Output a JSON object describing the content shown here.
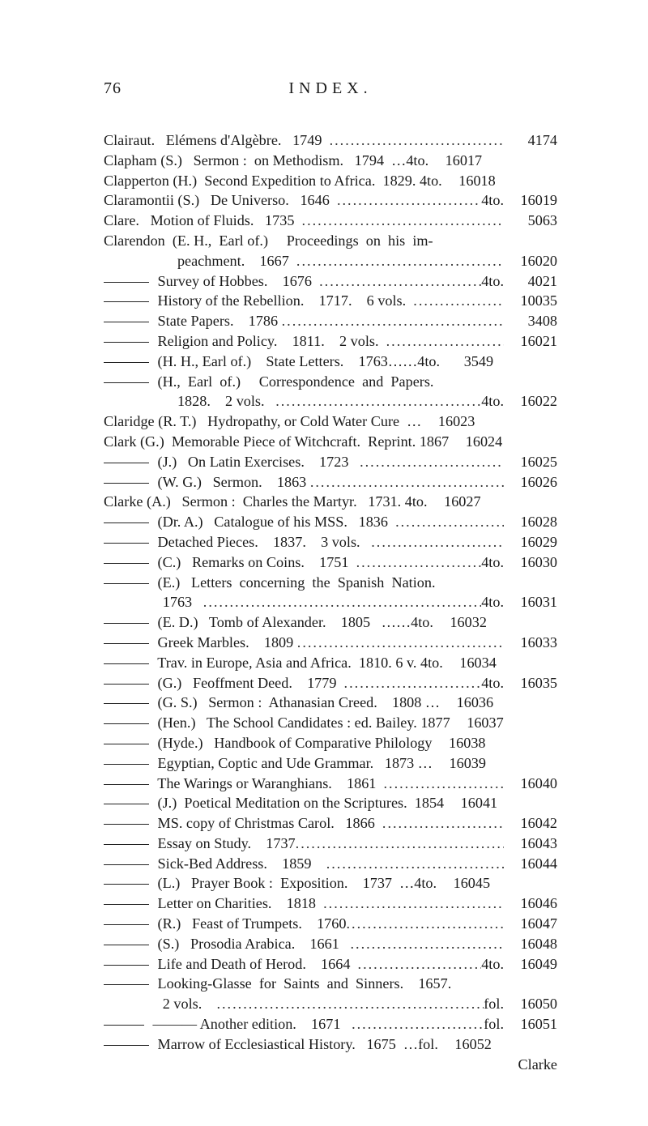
{
  "page_number": "76",
  "page_title": "INDEX.",
  "footer_word": "Clarke",
  "entries": [
    {
      "lead": "",
      "text": "Clairaut.   Elémens d'Algèbre.   1749  ",
      "num": "4174"
    },
    {
      "lead": "",
      "text": "Clapham (S.)   Sermon :  on Methodism.   1794  …4to.",
      "num": "16017",
      "nodots": true
    },
    {
      "lead": "",
      "text": "Clapperton (H.)  Second Expedition to Africa.  1829. 4to.",
      "num": "16018",
      "nodots": true
    },
    {
      "lead": "",
      "text": "Claramontii (S.)   De Universo.   1646  ",
      "suffix": "4to.",
      "num": "16019"
    },
    {
      "lead": "",
      "text": "Clare.   Motion of Fluids.   1735  ",
      "num": "5063"
    },
    {
      "lead": "",
      "text": "Clarendon  (E. H.,  Earl of.)     Proceedings  on  his  im-",
      "nonum": true
    },
    {
      "lead": "                    ",
      "text": "peachment.    1667  ",
      "num": "16020"
    },
    {
      "dash": true,
      "text": " Survey of Hobbes.    1676  ",
      "suffix": "4to.",
      "num": "4021"
    },
    {
      "dash": true,
      "text": " History of the Rebellion.    1717.    6 vols.  ",
      "num": "10035"
    },
    {
      "dash": true,
      "text": " State Papers.    1786 ",
      "num": "3408"
    },
    {
      "dash": true,
      "text": " Religion and Policy.    1811.    2 vols.  ",
      "num": "16021"
    },
    {
      "dash": true,
      "text": " (H. H., Earl of.)    State Letters.    1763……4to.",
      "num": "3549",
      "nodots": true
    },
    {
      "dash": true,
      "text": " (H.,  Earl  of.)     Correspondence  and  Papers.",
      "nonum": true
    },
    {
      "lead": "                    ",
      "text": "1828.    2 vols.   ",
      "suffix": "4to.",
      "num": "16022"
    },
    {
      "lead": "",
      "text": "Claridge (R. T.)   Hydropathy, or Cold Water Cure  …",
      "num": "16023",
      "nodots": true
    },
    {
      "lead": "",
      "text": "Clark (G.)  Memorable Piece of Witchcraft.  Reprint. 1867",
      "num": "16024",
      "nodots": true
    },
    {
      "dash": true,
      "text": " (J.)   On Latin Exercises.    1723   ",
      "num": "16025"
    },
    {
      "dash": true,
      "text": " (W. G.)   Sermon.    1863 ",
      "num": "16026"
    },
    {
      "lead": "",
      "text": "Clarke (A.)   Sermon :  Charles the Martyr.   1731. 4to.",
      "num": "16027",
      "nodots": true
    },
    {
      "dash": true,
      "text": " (Dr. A.)   Catalogue of his MSS.   1836  ",
      "num": "16028"
    },
    {
      "dash": true,
      "text": " Detached Pieces.    1837.    3 vols.   ",
      "num": "16029"
    },
    {
      "dash": true,
      "text": " (C.)   Remarks on Coins.    1751  ",
      "suffix": "4to.",
      "num": "16030"
    },
    {
      "dash": true,
      "text": " (E.)   Letters  concerning  the  Spanish  Nation.",
      "nonum": true
    },
    {
      "lead": "                ",
      "text": "1763   ",
      "suffix": "4to.",
      "num": "16031"
    },
    {
      "dash": true,
      "text": " (E. D.)   Tomb of Alexander.    1805   ……4to.",
      "num": "16032",
      "nodots": true
    },
    {
      "dash": true,
      "text": " Greek Marbles.    1809 ",
      "num": "16033"
    },
    {
      "dash": true,
      "text": " Trav. in Europe, Asia and Africa.  1810. 6 v. 4to.",
      "num": "16034",
      "nodots": true
    },
    {
      "dash": true,
      "text": " (G.)   Feoffment Deed.    1779  ",
      "suffix": "4to.",
      "num": "16035"
    },
    {
      "dash": true,
      "text": " (G. S.)   Sermon :  Athanasian Creed.    1808 …",
      "num": "16036",
      "nodots": true
    },
    {
      "dash": true,
      "text": " (Hen.)   The School Candidates : ed. Bailey. 1877",
      "num": "16037",
      "nodots": true
    },
    {
      "dash": true,
      "text": " (Hyde.)   Handbook of Comparative Philology",
      "num": "16038",
      "nodots": true
    },
    {
      "dash": true,
      "text": " Egyptian, Coptic and Ude Grammar.   1873 …",
      "num": "16039",
      "nodots": true
    },
    {
      "dash": true,
      "text": " The Warings or Waranghians.    1861  ",
      "num": "16040"
    },
    {
      "dash": true,
      "text": " (J.)  Poetical Meditation on the Scriptures.  1854",
      "num": "16041",
      "nodots": true
    },
    {
      "dash": true,
      "text": " MS. copy of Christmas Carol.   1866  ",
      "num": "16042"
    },
    {
      "dash": true,
      "text": " Essay on Study.    1737",
      "num": "16043"
    },
    {
      "dash": true,
      "text": " Sick-Bed Address.    1859    ",
      "num": "16044"
    },
    {
      "dash": true,
      "text": " (L.)   Prayer Book :  Exposition.    1737  …4to.",
      "num": "16045",
      "nodots": true
    },
    {
      "dash": true,
      "text": " Letter on Charities.    1818  ",
      "num": "16046"
    },
    {
      "dash": true,
      "text": " (R.)   Feast of Trumpets.    1760",
      "num": "16047"
    },
    {
      "dash": true,
      "text": " (S.)   Prosodia Arabica.    1661   ",
      "num": "16048"
    },
    {
      "dash": true,
      "text": " Life and Death of Herod.    1664  ",
      "suffix": "4to.",
      "num": "16049"
    },
    {
      "dash": true,
      "text": " Looking-Glasse  for  Saints  and  Sinners.    1657.",
      "nonum": true
    },
    {
      "lead": "                ",
      "text": "2 vols.    ",
      "suffix": "fol.",
      "num": "16050"
    },
    {
      "dash": true,
      "text": " ——— Another edition.    1671   ",
      "suffix": "fol.",
      "num": "16051",
      "dashstyle": "short"
    },
    {
      "dash": true,
      "text": " Marrow of Ecclesiastical History.   1675  …fol.",
      "num": "16052",
      "nodots": true
    }
  ]
}
